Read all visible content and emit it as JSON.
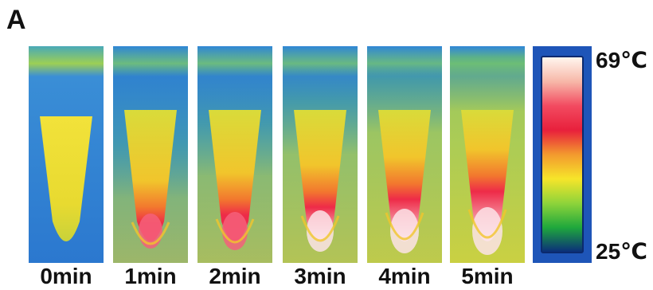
{
  "figure": {
    "panel_letter": "A",
    "frames": [
      {
        "label": "0min",
        "heat": 0
      },
      {
        "label": "1min",
        "heat": 1
      },
      {
        "label": "2min",
        "heat": 2
      },
      {
        "label": "3min",
        "heat": 3
      },
      {
        "label": "4min",
        "heat": 4
      },
      {
        "label": "5min",
        "heat": 5
      }
    ],
    "scale": {
      "max_label": "69℃",
      "min_label": "25℃",
      "colors_high_to_low": [
        "#fff6ee",
        "#f7b7a8",
        "#f24a60",
        "#e8203c",
        "#f39a2e",
        "#f6e52a",
        "#8fd43a",
        "#1fa83c",
        "#0b2f7a"
      ]
    }
  }
}
